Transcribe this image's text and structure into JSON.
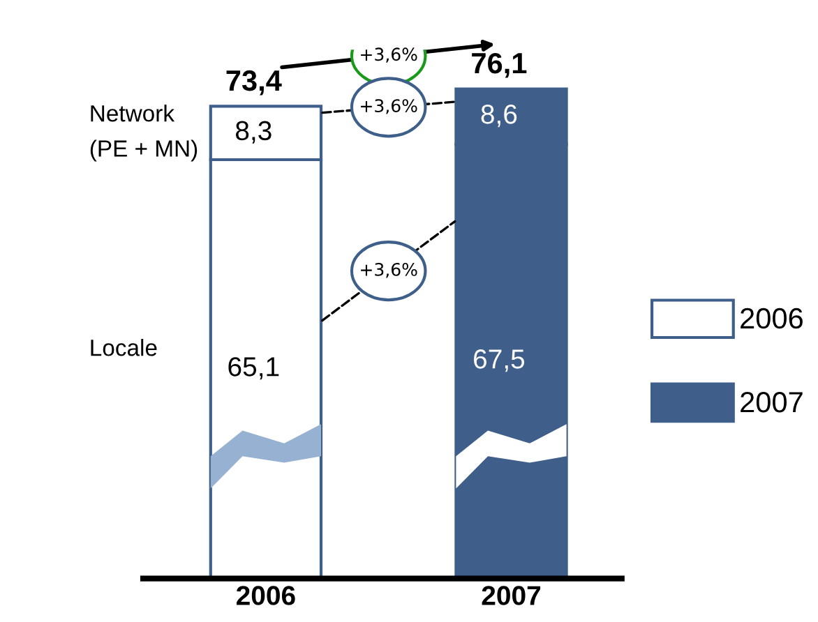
{
  "chart_data": {
    "type": "bar",
    "stacked": true,
    "categories": [
      "2006",
      "2007"
    ],
    "series": [
      {
        "name": "2006",
        "color": "#ffffff",
        "values": [
          65.1,
          null
        ],
        "value_labels": [
          "65,1",
          null
        ]
      },
      {
        "name": "2007",
        "color": "#3f5f8a",
        "values": [
          null,
          67.5
        ],
        "value_labels": [
          null,
          "67,5"
        ]
      },
      {
        "color": "#ffffff",
        "values": [
          8.3,
          null
        ],
        "value_labels": [
          "8,3",
          null
        ]
      },
      {
        "color": "#3f5f8a",
        "values": [
          null,
          8.6
        ],
        "value_labels": [
          null,
          "8,6"
        ]
      }
    ],
    "totals": [
      "73,4",
      "76,1"
    ],
    "tick_labels": "x",
    "legend": "right",
    "annotations": [
      "Locale",
      "Network\n(PE + MN)",
      "+3,6%",
      "+3,6%",
      "+3,6%"
    ]
  }
}
